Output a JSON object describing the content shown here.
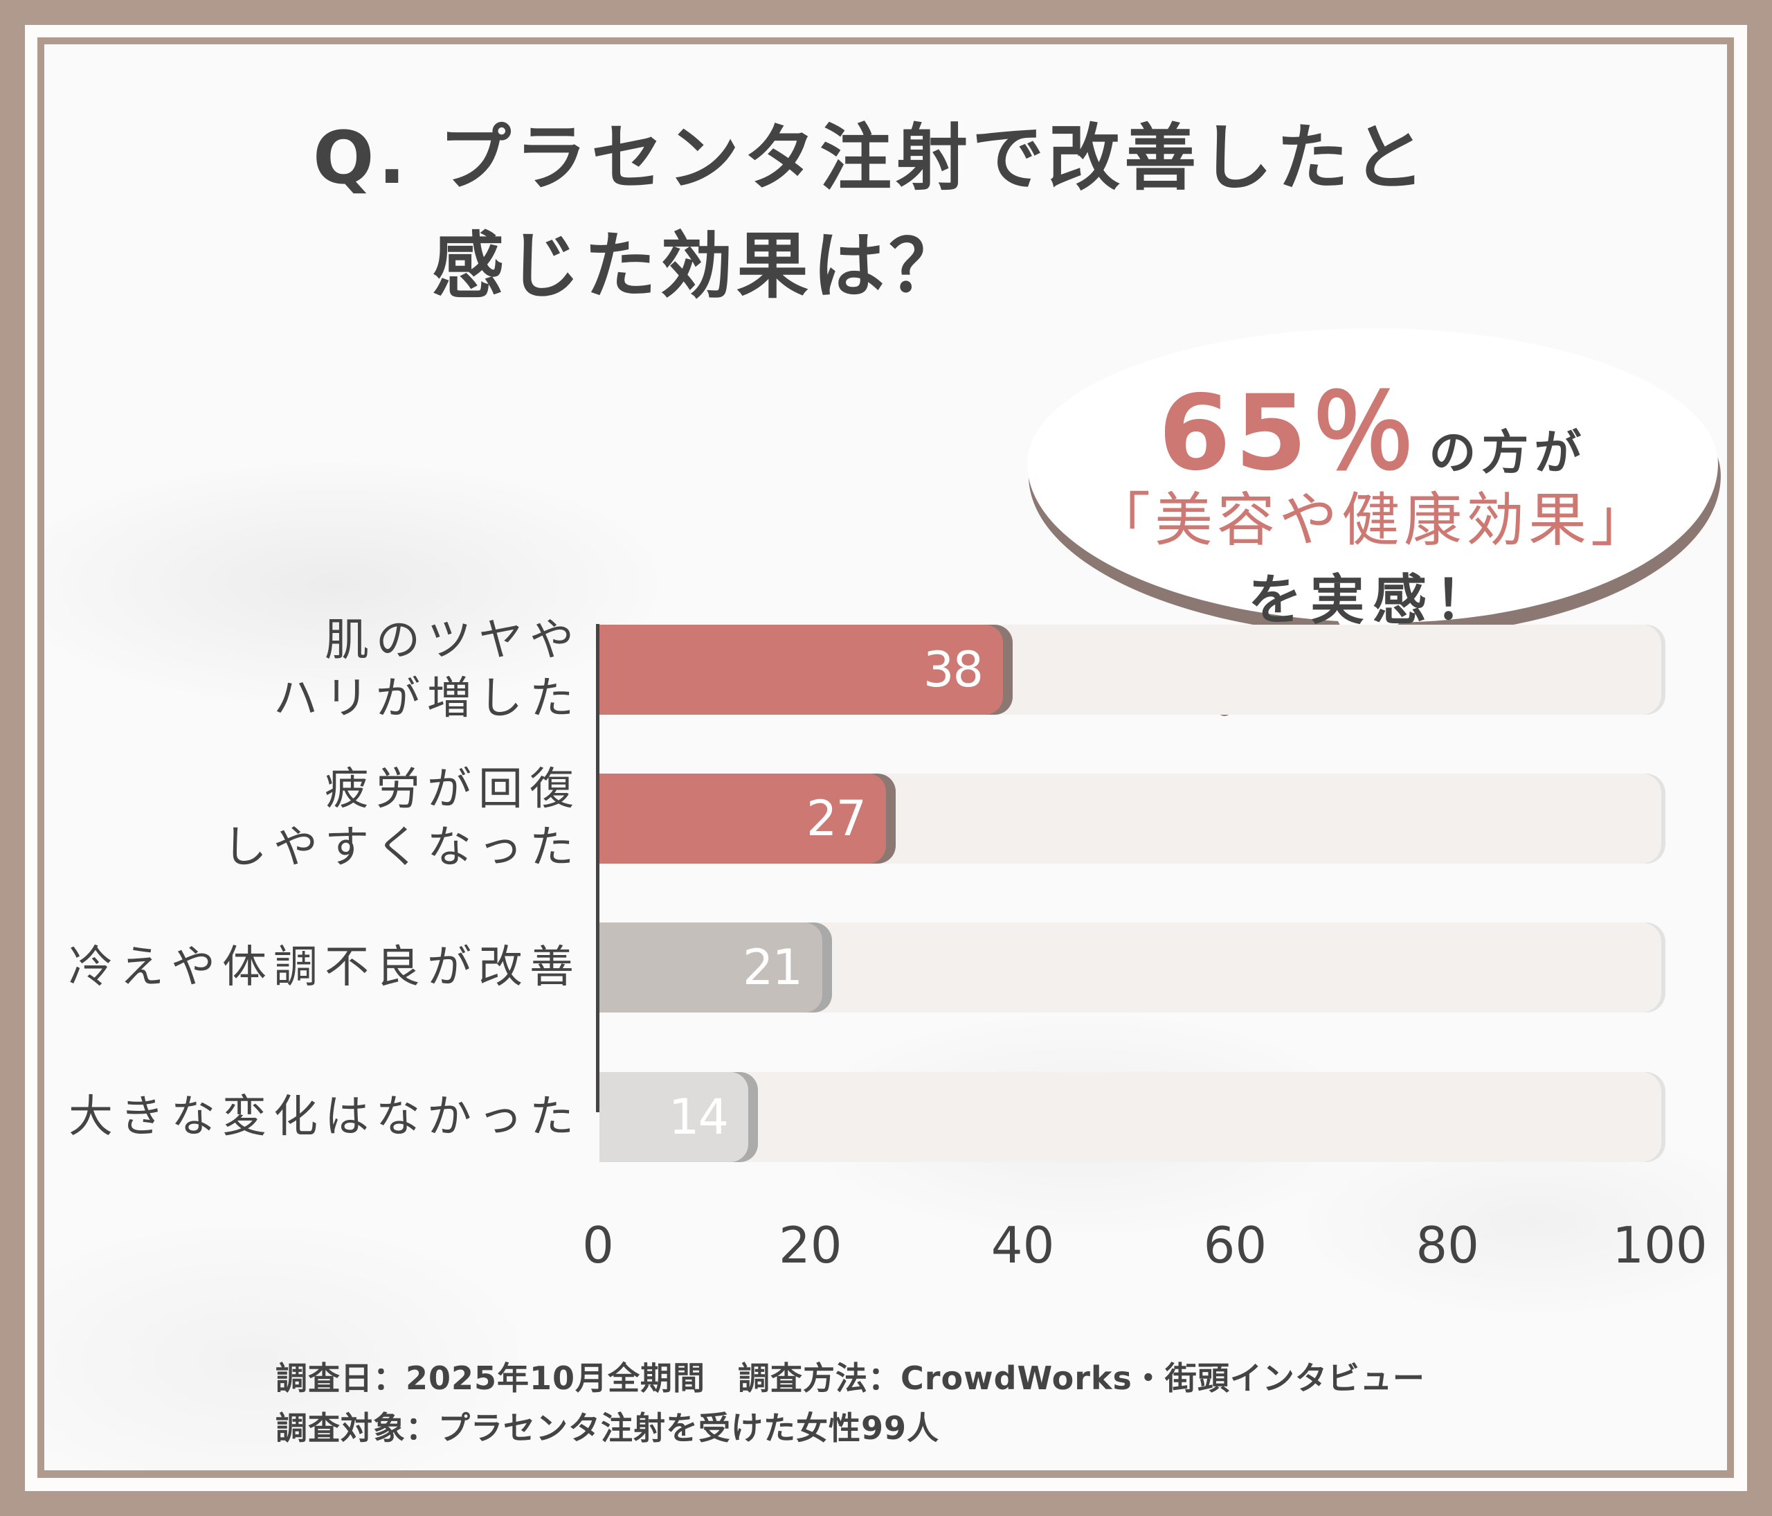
{
  "title": {
    "line1": "Q. プラセンタ注射で改善したと",
    "line2": "感じた効果は？"
  },
  "callout": {
    "percent": "65％",
    "line1_suffix": "の方が",
    "line2": "「美容や健康効果」",
    "line3": "を実感！"
  },
  "colors": {
    "frame": "#b09a8e",
    "accent_pink": "#cd7872",
    "bar_shadow_pink": "#8c7872",
    "bar_gray": "#c5bfbc",
    "bar_light_gray": "#dedbdb",
    "track": "#f3f0ed",
    "text": "#444444"
  },
  "chart_data": {
    "type": "bar",
    "orientation": "horizontal",
    "title": "Q. プラセンタ注射で改善したと感じた効果は？",
    "categories": [
      "肌のツヤやハリが増した",
      "疲労が回復しやすくなった",
      "冷えや体調不良が改善",
      "大きな変化はなかった"
    ],
    "category_lines": [
      [
        "肌のツヤや",
        "ハリが増した"
      ],
      [
        "疲労が回復",
        "しやすくなった"
      ],
      [
        "冷えや体調不良が改善"
      ],
      [
        "大きな変化はなかった"
      ]
    ],
    "values": [
      38,
      27,
      21,
      14
    ],
    "value_labels": [
      "38",
      "27",
      "21",
      "14"
    ],
    "bar_colors": [
      "#cd7872",
      "#cd7872",
      "#c5bfbc",
      "#dedbdb"
    ],
    "xlabel": "",
    "ylabel": "",
    "xlim": [
      0,
      100
    ],
    "x_ticks": [
      "0",
      "20",
      "40",
      "60",
      "80",
      "100"
    ],
    "grid": false,
    "legend": null,
    "annotation": "65％の方が「美容や健康効果」を実感！"
  },
  "footer": {
    "line1": "調査日：2025年10月全期間　調査方法：CrowdWorks・街頭インタビュー",
    "line2": "調査対象：プラセンタ注射を受けた女性99人"
  }
}
